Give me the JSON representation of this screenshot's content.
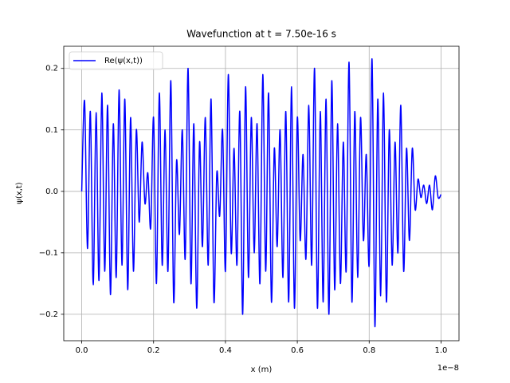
{
  "chart_data": {
    "type": "line",
    "title": "Wavefunction at t = 7.50e-16 s",
    "x_label": "x (m)",
    "y_label": "ψ(x,t)",
    "x_offset_label": "1e−8",
    "legend": "upper left",
    "grid": true,
    "xlim": [
      -0.05,
      1.05
    ],
    "xticks": [
      {
        "value": 0,
        "label": "0.0"
      },
      0.2,
      0.4,
      0.6,
      0.8,
      {
        "value": 1,
        "label": "1.0"
      }
    ],
    "ylim": [
      -0.243,
      0.236
    ],
    "yticks": [
      {
        "value": -0.2,
        "label": "−0.2"
      },
      {
        "value": -0.1,
        "label": "−0.1"
      },
      {
        "value": 0,
        "label": "0.0"
      },
      0.1,
      0.2
    ],
    "x": [
      0,
      0.008,
      0.016,
      0.024,
      0.032,
      0.04,
      0.048,
      0.056,
      0.064,
      0.072,
      0.08,
      0.088,
      0.096,
      0.104,
      0.112,
      0.12,
      0.128,
      0.136,
      0.144,
      0.152,
      0.16,
      0.168,
      0.176,
      0.184,
      0.192,
      0.2,
      0.208,
      0.216,
      0.224,
      0.232,
      0.24,
      0.248,
      0.256,
      0.264,
      0.272,
      0.28,
      0.288,
      0.296,
      0.304,
      0.312,
      0.32,
      0.328,
      0.336,
      0.344,
      0.352,
      0.36,
      0.368,
      0.376,
      0.384,
      0.392,
      0.4,
      0.408,
      0.416,
      0.424,
      0.432,
      0.44,
      0.448,
      0.456,
      0.464,
      0.472,
      0.48,
      0.488,
      0.496,
      0.504,
      0.512,
      0.52,
      0.528,
      0.536,
      0.544,
      0.552,
      0.56,
      0.568,
      0.576,
      0.584,
      0.592,
      0.6,
      0.608,
      0.616,
      0.624,
      0.632,
      0.64,
      0.648,
      0.656,
      0.664,
      0.672,
      0.68,
      0.688,
      0.696,
      0.704,
      0.712,
      0.72,
      0.728,
      0.736,
      0.744,
      0.752,
      0.76,
      0.768,
      0.776,
      0.784,
      0.792,
      0.8,
      0.808,
      0.816,
      0.824,
      0.832,
      0.84,
      0.848,
      0.856,
      0.864,
      0.872,
      0.88,
      0.888,
      0.896,
      0.904,
      0.912,
      0.92,
      0.928,
      0.936,
      0.944,
      0.952,
      0.96,
      0.968,
      0.976,
      0.984,
      0.992,
      1.0
    ],
    "series": [
      {
        "name": "Re(ψ(x,t))",
        "color": "#0000ff",
        "values": [
          0,
          0.147,
          -0.093,
          0.13,
          -0.152,
          0.128,
          -0.145,
          0.16,
          -0.13,
          0.14,
          -0.168,
          0.11,
          -0.14,
          0.165,
          -0.12,
          0.15,
          -0.16,
          0.12,
          -0.13,
          0.1,
          -0.05,
          0.08,
          -0.02,
          0.03,
          -0.06,
          0.12,
          -0.15,
          0.16,
          -0.12,
          0.1,
          -0.13,
          0.18,
          -0.18,
          0.05,
          -0.07,
          0.1,
          -0.11,
          0.2,
          -0.15,
          0.11,
          -0.19,
          0.08,
          -0.09,
          0.12,
          -0.12,
          0.15,
          -0.18,
          0.03,
          -0.04,
          0.1,
          -0.13,
          0.19,
          -0.1,
          0.07,
          -0.12,
          0.13,
          -0.2,
          0.17,
          -0.14,
          0.12,
          -0.1,
          0.11,
          -0.15,
          0.19,
          -0.13,
          0.16,
          -0.18,
          0.07,
          -0.09,
          0.1,
          -0.14,
          0.13,
          -0.18,
          0.17,
          -0.19,
          0.12,
          -0.08,
          0.06,
          -0.11,
          0.14,
          -0.12,
          0.2,
          -0.19,
          0.13,
          -0.18,
          0.15,
          -0.2,
          0.18,
          -0.16,
          0.11,
          -0.15,
          0.08,
          -0.13,
          0.21,
          -0.18,
          0.13,
          -0.14,
          0.12,
          -0.08,
          0.06,
          -0.12,
          0.215,
          -0.22,
          0.15,
          -0.17,
          0.16,
          -0.18,
          0.1,
          -0.12,
          0.08,
          -0.1,
          0.14,
          -0.13,
          0.07,
          -0.08,
          0.07,
          -0.03,
          0.02,
          -0.01,
          0.01,
          -0.02,
          0.01,
          -0.03,
          0.025,
          -0.01,
          -0.005
        ]
      }
    ]
  }
}
